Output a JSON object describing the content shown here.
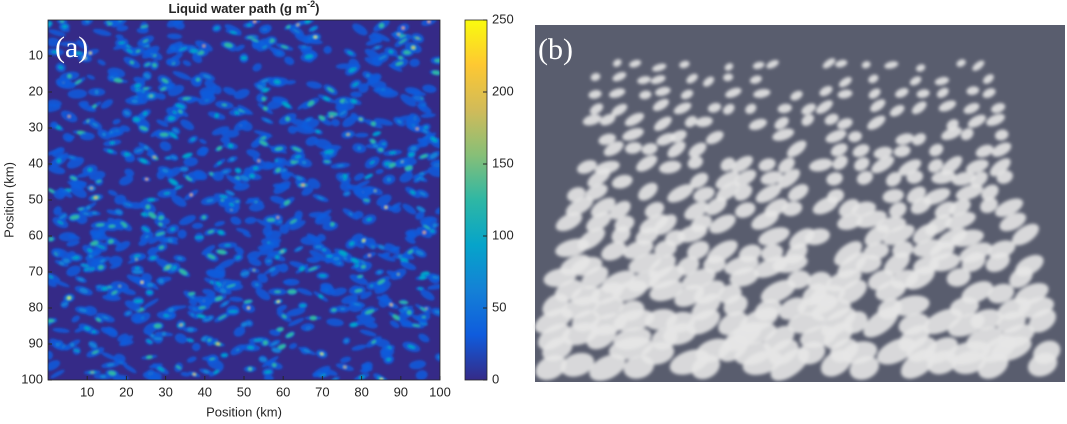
{
  "chart_data": [
    {
      "type": "heatmap",
      "title": [
        "Liquid water path (g m",
        "-2",
        ")"
      ],
      "panel_label": "(a)",
      "xlabel": "Position (km)",
      "ylabel": "Position (km)",
      "xlim": [
        0,
        100
      ],
      "xticks": [
        10,
        20,
        30,
        40,
        50,
        60,
        70,
        80,
        90,
        100
      ],
      "ylim": [
        100,
        0
      ],
      "yticks": [
        10,
        20,
        30,
        40,
        50,
        60,
        70,
        80,
        90,
        100
      ],
      "colorbar": {
        "lim": [
          0,
          250
        ],
        "ticks": [
          0,
          50,
          100,
          150,
          200,
          250
        ]
      },
      "colormap": [
        "#352a87",
        "#0f5cdd",
        "#1481d6",
        "#06a4ca",
        "#2eb7a4",
        "#87bf77",
        "#d1bb59",
        "#fec832",
        "#f9fb0e"
      ]
    },
    {
      "type": "render",
      "panel_label": "(b)",
      "background": "#595d6e",
      "cloud_color": "#e6e6e6"
    }
  ]
}
